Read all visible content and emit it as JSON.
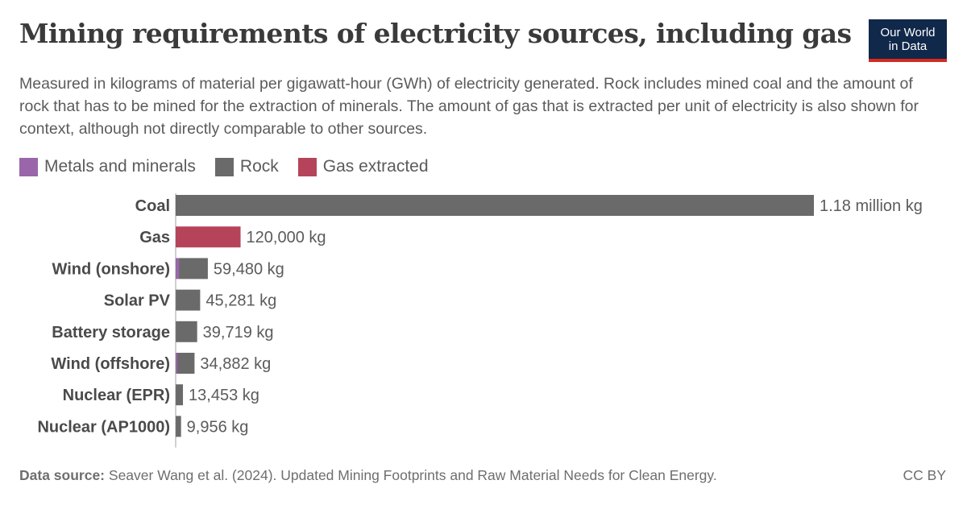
{
  "title": "Mining requirements of electricity sources, including gas",
  "subtitle": "Measured in kilograms of material per gigawatt-hour (GWh) of electricity generated. Rock includes mined coal and the amount of rock that has to be mined for the extraction of minerals. The amount of gas that is extracted per unit of electricity is also shown for context, although not directly comparable to other sources.",
  "logo": {
    "line1": "Our World",
    "line2": "in Data"
  },
  "footer": {
    "source_label": "Data source:",
    "source_text": "Seaver Wang et al. (2024). Updated Mining Footprints and Raw Material Needs for Clean Energy.",
    "license": "CC BY"
  },
  "colors": {
    "metals": "#9966aa",
    "rock": "#6a6a6a",
    "gas": "#b5445a"
  },
  "chart_data": {
    "type": "bar",
    "orientation": "horizontal",
    "stacked": true,
    "legend_position": "top-left",
    "xlim": [
      0,
      1180000
    ],
    "legend": [
      {
        "name": "Metals and minerals",
        "color": "#9966aa"
      },
      {
        "name": "Rock",
        "color": "#6a6a6a"
      },
      {
        "name": "Gas extracted",
        "color": "#b5445a"
      }
    ],
    "categories": [
      "Coal",
      "Gas",
      "Wind (onshore)",
      "Solar PV",
      "Battery storage",
      "Wind (offshore)",
      "Nuclear (EPR)",
      "Nuclear (AP1000)"
    ],
    "series": [
      {
        "name": "Metals and minerals",
        "color": "#9966aa",
        "values": [
          0,
          0,
          6000,
          500,
          500,
          3000,
          200,
          200
        ]
      },
      {
        "name": "Rock",
        "color": "#6a6a6a",
        "values": [
          1180000,
          0,
          53480,
          44781,
          39219,
          31882,
          13253,
          9756
        ]
      },
      {
        "name": "Gas extracted",
        "color": "#b5445a",
        "values": [
          0,
          120000,
          0,
          0,
          0,
          0,
          0,
          0
        ]
      }
    ],
    "totals_labels": [
      "1.18 million kg",
      "120,000 kg",
      "59,480 kg",
      "45,281 kg",
      "39,719 kg",
      "34,882 kg",
      "13,453 kg",
      "9,956 kg"
    ]
  }
}
